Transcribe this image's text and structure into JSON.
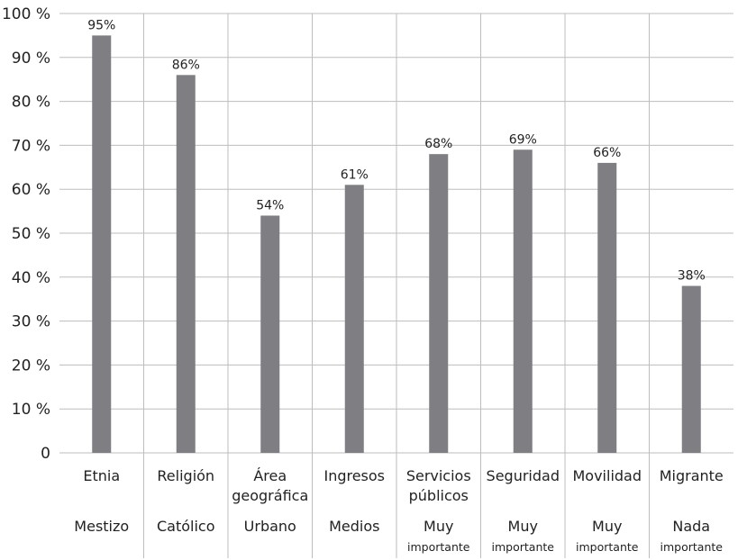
{
  "chart_data": {
    "type": "bar",
    "title": "",
    "xlabel": "",
    "ylabel": "",
    "ylim": [
      0,
      100
    ],
    "grid": true,
    "y_ticks": [
      "0",
      "10 %",
      "20 %",
      "30 %",
      "40 %",
      "50 %",
      "60 %",
      "70 %",
      "80 %",
      "90 %",
      "100 %"
    ],
    "categories": [
      {
        "lines": [
          "Etnia"
        ],
        "sub": [
          "Mestizo"
        ],
        "sub_small": false
      },
      {
        "lines": [
          "Religión"
        ],
        "sub": [
          "Católico"
        ],
        "sub_small": false
      },
      {
        "lines": [
          "Área",
          "geográfica"
        ],
        "sub": [
          "Urbano"
        ],
        "sub_small": false
      },
      {
        "lines": [
          "Ingresos"
        ],
        "sub": [
          "Medios"
        ],
        "sub_small": false
      },
      {
        "lines": [
          "Servicios",
          "públicos"
        ],
        "sub": [
          "Muy",
          "importante"
        ],
        "sub_small": true
      },
      {
        "lines": [
          "Seguridad"
        ],
        "sub": [
          "Muy",
          "importante"
        ],
        "sub_small": true
      },
      {
        "lines": [
          "Movilidad"
        ],
        "sub": [
          "Muy",
          "importante"
        ],
        "sub_small": true
      },
      {
        "lines": [
          "Migrante"
        ],
        "sub": [
          "Nada",
          "importante"
        ],
        "sub_small": true
      }
    ],
    "values": [
      95,
      86,
      54,
      61,
      68,
      69,
      66,
      38
    ],
    "data_labels": [
      "95%",
      "86%",
      "54%",
      "61%",
      "68%",
      "69%",
      "66%",
      "38%"
    ],
    "colors": {
      "bar": "#7f7f83",
      "grid": "#bdbdbd",
      "text": "#222222"
    }
  }
}
